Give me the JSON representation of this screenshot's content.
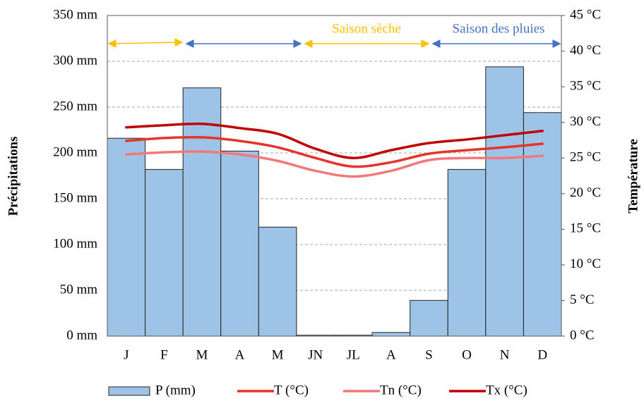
{
  "chart_data": {
    "type": "bar_line",
    "y_label": "Précipitations",
    "y2_label": "Température",
    "annotations": [
      "Saison sèche",
      "Saison des pluies"
    ],
    "categories": [
      "J",
      "F",
      "M",
      "A",
      "M",
      "JN",
      "JL",
      "A",
      "S",
      "O",
      "N",
      "D"
    ],
    "series": [
      {
        "name": "P (mm)",
        "type": "bar",
        "color": "#9dc3e6",
        "values": [
          216,
          182,
          271,
          202,
          119,
          1,
          1,
          4,
          39,
          182,
          294,
          244
        ]
      },
      {
        "name": "T (°C)",
        "type": "line",
        "axis": "y2",
        "color": "#e8332a",
        "values": [
          27.4,
          27.8,
          27.9,
          27.4,
          26.5,
          25.0,
          23.8,
          24.4,
          25.6,
          26.1,
          26.5,
          27.0
        ]
      },
      {
        "name": "Tn (°C)",
        "type": "line",
        "axis": "y2",
        "color": "#f4787a",
        "values": [
          25.5,
          25.8,
          25.9,
          25.5,
          24.6,
          23.2,
          22.4,
          23.2,
          24.7,
          25.0,
          25.0,
          25.3
        ]
      },
      {
        "name": "Tx (°C)",
        "type": "line",
        "axis": "y2",
        "color": "#c00000",
        "values": [
          29.3,
          29.6,
          29.8,
          29.2,
          28.4,
          26.3,
          25.0,
          26.1,
          27.1,
          27.6,
          28.2,
          28.8
        ]
      }
    ],
    "ylim": [
      0,
      350
    ],
    "yticks": [
      {
        "value": 0,
        "label": "0 mm"
      },
      {
        "value": 50,
        "label": "50 mm"
      },
      {
        "value": 100,
        "label": "100 mm"
      },
      {
        "value": 150,
        "label": "150 mm"
      },
      {
        "value": 200,
        "label": "200 mm"
      },
      {
        "value": 250,
        "label": "250 mm"
      },
      {
        "value": 300,
        "label": "300 mm"
      },
      {
        "value": 350,
        "label": "350 mm"
      }
    ],
    "y2lim": [
      0,
      45
    ],
    "y2ticks": [
      {
        "value": 0,
        "label": "0 °C"
      },
      {
        "value": 5,
        "label": "5 °C"
      },
      {
        "value": 10,
        "label": "10 °C"
      },
      {
        "value": 15,
        "label": "15 °C"
      },
      {
        "value": 20,
        "label": "20 °C"
      },
      {
        "value": 25,
        "label": "25 °C"
      },
      {
        "value": 30,
        "label": "30 °C"
      },
      {
        "value": 35,
        "label": "35 °C"
      },
      {
        "value": 40,
        "label": "40 °C"
      },
      {
        "value": 45,
        "label": "45 °C"
      }
    ],
    "grid": true,
    "legend": "bottom"
  }
}
